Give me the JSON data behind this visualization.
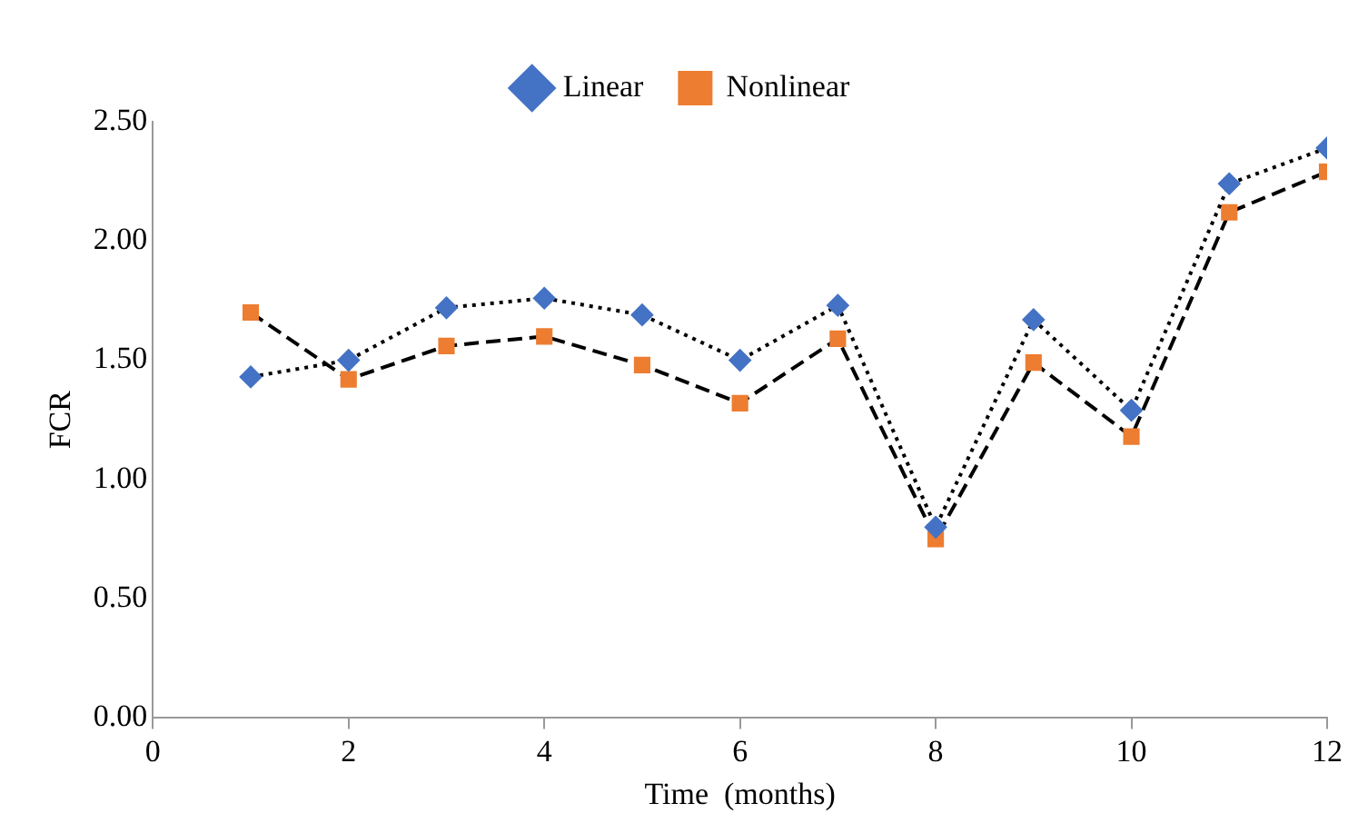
{
  "chart_data": {
    "type": "line",
    "xlabel": "Time  (months)",
    "ylabel": "FCR",
    "x": [
      1,
      2,
      3,
      4,
      5,
      6,
      7,
      8,
      9,
      10,
      11,
      12
    ],
    "series": [
      {
        "name": "Linear",
        "color": "#4472c4",
        "marker": "diamond",
        "line_style": "dotted",
        "values": [
          1.43,
          1.5,
          1.72,
          1.76,
          1.69,
          1.5,
          1.73,
          0.8,
          1.67,
          1.29,
          2.24,
          2.39
        ]
      },
      {
        "name": "Nonlinear",
        "color": "#ed7d31",
        "marker": "square",
        "line_style": "dashed",
        "values": [
          1.7,
          1.42,
          1.56,
          1.6,
          1.48,
          1.32,
          1.59,
          0.75,
          1.49,
          1.18,
          2.12,
          2.29
        ]
      }
    ],
    "xlim": [
      0,
      12
    ],
    "xticks": [
      0,
      2,
      4,
      6,
      8,
      10,
      12
    ],
    "ylim": [
      0,
      2.5
    ],
    "yticks": [
      {
        "value": 0,
        "label": "0.00"
      },
      {
        "value": 0.5,
        "label": "0.50"
      },
      {
        "value": 1,
        "label": "1.00"
      },
      {
        "value": 1.5,
        "label": "1.50"
      },
      {
        "value": 2,
        "label": "2.00"
      },
      {
        "value": 2.5,
        "label": "2.50"
      }
    ],
    "grid": false,
    "legend": "top"
  }
}
